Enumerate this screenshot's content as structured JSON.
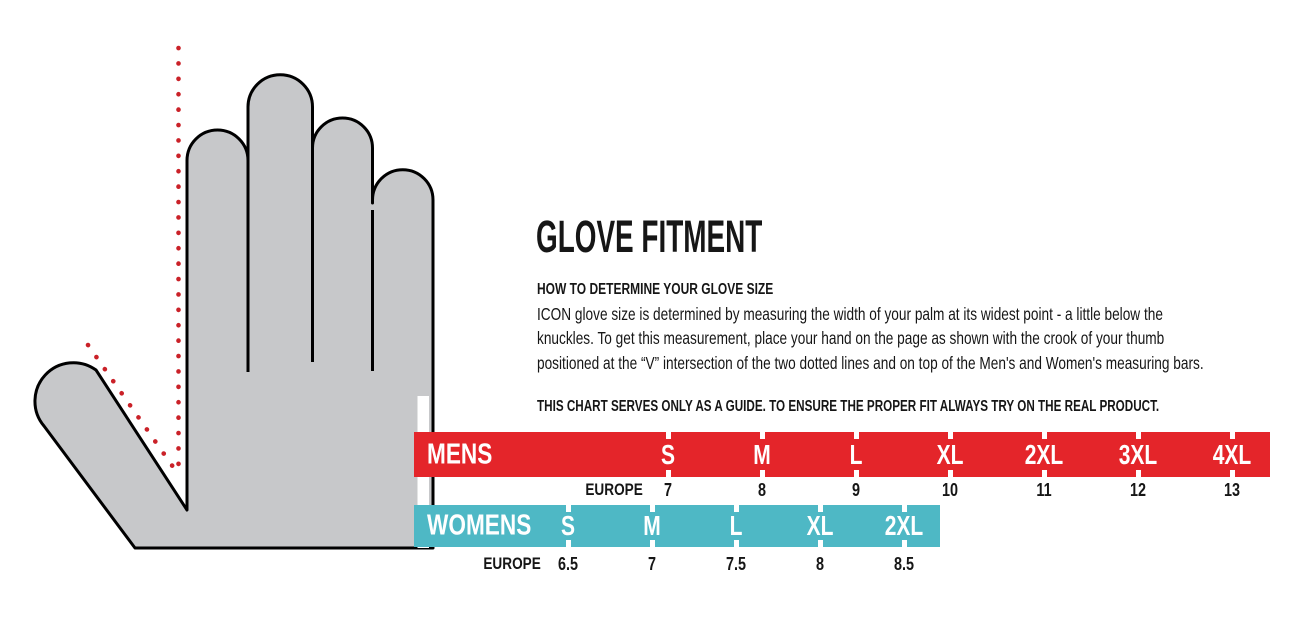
{
  "colors": {
    "mens_bar": "#e4252a",
    "womens_bar": "#4eb8c5",
    "hand_fill": "#c7c8ca",
    "hand_outline": "#000000",
    "dotted_line": "#ca2128",
    "text": "#161616",
    "bar_text": "#ffffff"
  },
  "content": {
    "title": "GLOVE FITMENT",
    "subtitle": "HOW TO DETERMINE YOUR GLOVE SIZE",
    "intro_lines": [
      "ICON glove size is determined by measuring the width of your palm at its widest point - a little below the",
      "knuckles. To get this measurement, place your hand on the page as shown with the crook of your thumb",
      "positioned at the “V” intersection of the two dotted lines and on top of the Men's and Women's measuring bars."
    ],
    "disclaimer": "THIS CHART SERVES ONLY AS A GUIDE. TO ENSURE THE PROPER FIT ALWAYS TRY ON THE REAL PRODUCT."
  },
  "mens": {
    "label": "MENS",
    "europe_label": "EUROPE",
    "sizes": [
      {
        "size": "S",
        "europe": "7"
      },
      {
        "size": "M",
        "europe": "8"
      },
      {
        "size": "L",
        "europe": "9"
      },
      {
        "size": "XL",
        "europe": "10"
      },
      {
        "size": "2XL",
        "europe": "11"
      },
      {
        "size": "3XL",
        "europe": "12"
      },
      {
        "size": "4XL",
        "europe": "13"
      }
    ]
  },
  "womens": {
    "label": "WOMENS",
    "europe_label": "EUROPE",
    "sizes": [
      {
        "size": "S",
        "europe": "6.5"
      },
      {
        "size": "M",
        "europe": "7"
      },
      {
        "size": "L",
        "europe": "7.5"
      },
      {
        "size": "XL",
        "europe": "8"
      },
      {
        "size": "2XL",
        "europe": "8.5"
      }
    ]
  }
}
